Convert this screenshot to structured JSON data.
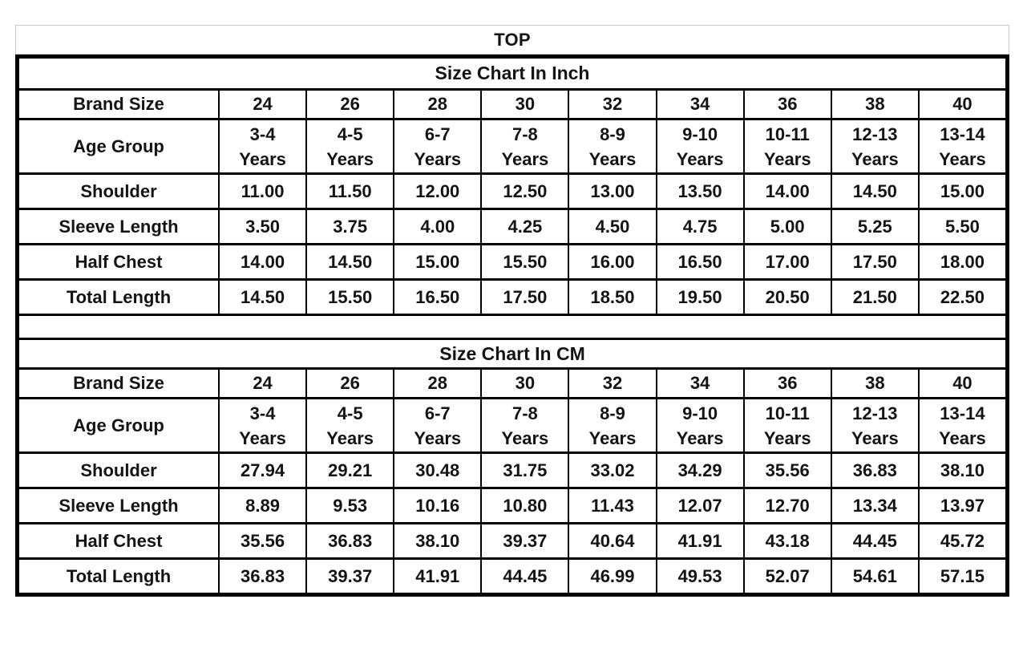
{
  "page_title": "TOP",
  "colors": {
    "text": "#141414",
    "grid_border": "#000000",
    "outer_frame": "#c9c9c9",
    "background": "#ffffff"
  },
  "chart_data": [
    {
      "type": "table",
      "title": "Size Chart In Inch",
      "row_header_labels": {
        "brand": "Brand Size",
        "age": "Age Group"
      },
      "brand_sizes": [
        "24",
        "26",
        "28",
        "30",
        "32",
        "34",
        "36",
        "38",
        "40"
      ],
      "age_groups": [
        "3-4",
        "4-5",
        "6-7",
        "7-8",
        "8-9",
        "9-10",
        "10-11",
        "12-13",
        "13-14"
      ],
      "age_suffix": "Years",
      "measurements": [
        {
          "label": "Shoulder",
          "values": [
            "11.00",
            "11.50",
            "12.00",
            "12.50",
            "13.00",
            "13.50",
            "14.00",
            "14.50",
            "15.00"
          ]
        },
        {
          "label": "Sleeve Length",
          "values": [
            "3.50",
            "3.75",
            "4.00",
            "4.25",
            "4.50",
            "4.75",
            "5.00",
            "5.25",
            "5.50"
          ]
        },
        {
          "label": "Half Chest",
          "values": [
            "14.00",
            "14.50",
            "15.00",
            "15.50",
            "16.00",
            "16.50",
            "17.00",
            "17.50",
            "18.00"
          ]
        },
        {
          "label": "Total Length",
          "values": [
            "14.50",
            "15.50",
            "16.50",
            "17.50",
            "18.50",
            "19.50",
            "20.50",
            "21.50",
            "22.50"
          ]
        }
      ]
    },
    {
      "type": "table",
      "title": "Size Chart In CM",
      "row_header_labels": {
        "brand": "Brand Size",
        "age": "Age Group"
      },
      "brand_sizes": [
        "24",
        "26",
        "28",
        "30",
        "32",
        "34",
        "36",
        "38",
        "40"
      ],
      "age_groups": [
        "3-4",
        "4-5",
        "6-7",
        "7-8",
        "8-9",
        "9-10",
        "10-11",
        "12-13",
        "13-14"
      ],
      "age_suffix": "Years",
      "measurements": [
        {
          "label": "Shoulder",
          "values": [
            "27.94",
            "29.21",
            "30.48",
            "31.75",
            "33.02",
            "34.29",
            "35.56",
            "36.83",
            "38.10"
          ]
        },
        {
          "label": "Sleeve Length",
          "values": [
            "8.89",
            "9.53",
            "10.16",
            "10.80",
            "11.43",
            "12.07",
            "12.70",
            "13.34",
            "13.97"
          ]
        },
        {
          "label": "Half Chest",
          "values": [
            "35.56",
            "36.83",
            "38.10",
            "39.37",
            "40.64",
            "41.91",
            "43.18",
            "44.45",
            "45.72"
          ]
        },
        {
          "label": "Total Length",
          "values": [
            "36.83",
            "39.37",
            "41.91",
            "44.45",
            "46.99",
            "49.53",
            "52.07",
            "54.61",
            "57.15"
          ]
        }
      ]
    }
  ]
}
